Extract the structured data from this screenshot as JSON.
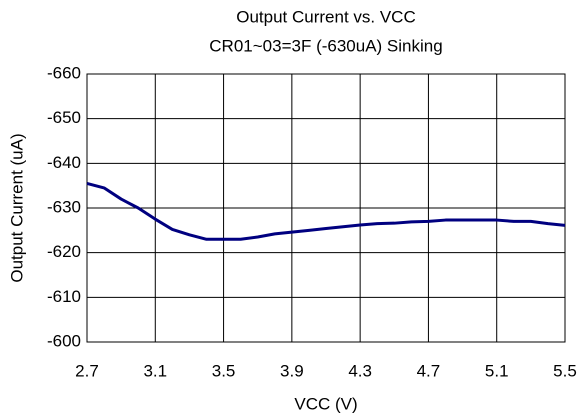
{
  "chart_data": {
    "type": "line",
    "title": "Output Current vs. VCC",
    "subtitle": "CR01~03=3F (-630uA) Sinking",
    "x_label": "VCC (V)",
    "y_label": "Output Current (uA)",
    "x": [
      2.7,
      2.8,
      2.9,
      3.0,
      3.1,
      3.2,
      3.3,
      3.4,
      3.5,
      3.6,
      3.7,
      3.8,
      3.9,
      4.0,
      4.1,
      4.2,
      4.3,
      4.4,
      4.5,
      4.6,
      4.7,
      4.8,
      4.9,
      5.0,
      5.1,
      5.2,
      5.3,
      5.4,
      5.5
    ],
    "series": [
      {
        "color": "#000080",
        "values": [
          -635.5,
          -634.5,
          -632,
          -630,
          -627.5,
          -625.2,
          -624,
          -623,
          -623,
          -623,
          -623.5,
          -624.2,
          -624.6,
          -625,
          -625.4,
          -625.8,
          -626.2,
          -626.5,
          -626.6,
          -626.9,
          -627,
          -627.3,
          -627.3,
          -627.3,
          -627.3,
          -627,
          -627,
          -626.5,
          -626.1
        ]
      }
    ],
    "xlim": [
      2.7,
      5.5
    ],
    "xticks": [
      2.7,
      3.1,
      3.5,
      3.9,
      4.3,
      4.7,
      5.1,
      5.5
    ],
    "ylim": [
      -600,
      -660
    ],
    "yticks": [
      -600,
      -610,
      -620,
      -630,
      -640,
      -650,
      -660
    ],
    "grid": true
  }
}
